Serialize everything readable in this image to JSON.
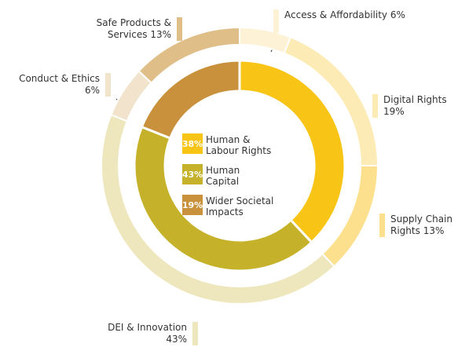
{
  "chart_data": {
    "type": "nested-donut",
    "inner_ring": {
      "categories": [
        "Human & Labour Rights",
        "Human Capital",
        "Wider Societal Impacts"
      ],
      "values": [
        38,
        43,
        19
      ],
      "value_labels": [
        "38%",
        "43%",
        "19%"
      ],
      "colors": [
        "#f8c416",
        "#c6b22a",
        "#c9913c"
      ]
    },
    "outer_ring": {
      "categories": [
        "Access & Affordability",
        "Digital Rights",
        "Supply Chain Rights",
        "DEI & Innovation",
        "Conduct & Ethics",
        "Safe Products & Services"
      ],
      "values": [
        6,
        19,
        13,
        43,
        6,
        13
      ],
      "value_labels": [
        "6%",
        "19%",
        "13%",
        "43%",
        "6%",
        "13%"
      ],
      "colors": [
        "#fdf2d6",
        "#fdebb6",
        "#fde08e",
        "#eee6bc",
        "#f2e4cc",
        "#e0be87"
      ]
    }
  }
}
